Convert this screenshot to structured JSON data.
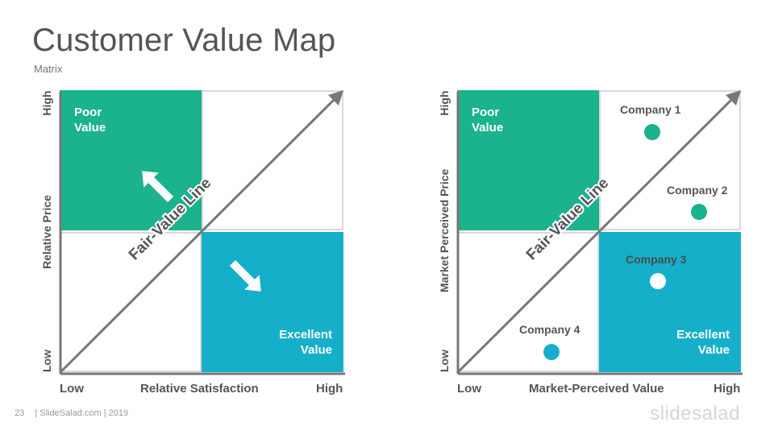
{
  "header": {
    "title": "Customer Value Map",
    "subtitle": "Matrix"
  },
  "left_matrix": {
    "quadrants": {
      "top_left": "Poor\nValue",
      "bottom_right": "Excellent\nValue"
    },
    "diagonal_label": "Fair-Value Line",
    "y_axis": {
      "label": "Relative Price",
      "low": "Low",
      "high": "High"
    },
    "x_axis": {
      "label": "Relative Satisfaction",
      "low": "Low",
      "high": "High"
    }
  },
  "right_matrix": {
    "quadrants": {
      "top_left": "Poor\nValue",
      "bottom_right": "Excellent\nValue"
    },
    "diagonal_label": "Fair-Value Line",
    "y_axis": {
      "label": "Market Perceived Price",
      "low": "Low",
      "high": "High"
    },
    "x_axis": {
      "label": "Market-Perceived Value",
      "low": "Low",
      "high": "High"
    },
    "companies": [
      {
        "name": "Company 1",
        "dot_color": "#1bb28e"
      },
      {
        "name": "Company 2",
        "dot_color": "#1bb28e"
      },
      {
        "name": "Company 3",
        "dot_color": "#ffffff"
      },
      {
        "name": "Company 4",
        "dot_color": "#16afc9"
      }
    ]
  },
  "footer": {
    "page_number": "23",
    "credit": "| SlideSalad.com | 2019",
    "brand": "slidesalad"
  },
  "colors": {
    "poor_value": "#1bb28e",
    "excellent_value": "#16afc9",
    "axis": "#777777",
    "text": "#555555"
  }
}
